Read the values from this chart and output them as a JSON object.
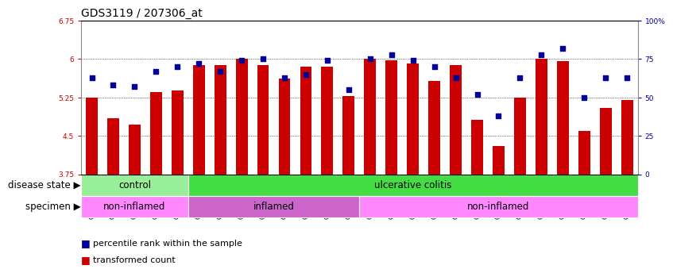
{
  "title": "GDS3119 / 207306_at",
  "samples": [
    "GSM240023",
    "GSM240024",
    "GSM240025",
    "GSM240026",
    "GSM240027",
    "GSM239617",
    "GSM239618",
    "GSM239714",
    "GSM239716",
    "GSM239717",
    "GSM239718",
    "GSM239719",
    "GSM239720",
    "GSM239723",
    "GSM239725",
    "GSM239726",
    "GSM239727",
    "GSM239729",
    "GSM239730",
    "GSM239731",
    "GSM239732",
    "GSM240022",
    "GSM240028",
    "GSM240029",
    "GSM240030",
    "GSM240031"
  ],
  "bar_values": [
    5.25,
    4.85,
    4.72,
    5.36,
    5.38,
    5.88,
    5.88,
    6.0,
    5.88,
    5.62,
    5.85,
    5.85,
    5.28,
    6.0,
    5.98,
    5.92,
    5.57,
    5.88,
    4.82,
    4.3,
    5.25,
    6.0,
    5.96,
    4.6,
    5.05,
    5.2
  ],
  "dot_values": [
    63,
    58,
    57,
    67,
    70,
    72,
    67,
    74,
    75,
    63,
    65,
    74,
    55,
    75,
    78,
    74,
    70,
    63,
    52,
    38,
    63,
    78,
    82,
    50,
    63,
    63
  ],
  "ylim_left": [
    3.75,
    6.75
  ],
  "ylim_right": [
    0,
    100
  ],
  "yticks_left": [
    3.75,
    4.5,
    5.25,
    6.0,
    6.75
  ],
  "yticks_right": [
    0,
    25,
    50,
    75,
    100
  ],
  "ytick_labels_left": [
    "3.75",
    "4.5",
    "5.25",
    "6",
    "6.75"
  ],
  "ytick_labels_right": [
    "0",
    "25",
    "50",
    "75",
    "100%"
  ],
  "bar_color": "#CC0000",
  "dot_color": "#000099",
  "grid_color": "#000000",
  "bg_color": "#FFFFFF",
  "plot_bg_color": "#FFFFFF",
  "plot_frame_color": "#AAAAAA",
  "disease_state_groups": [
    {
      "label": "control",
      "start": 0,
      "end": 5,
      "color": "#99EE99"
    },
    {
      "label": "ulcerative colitis",
      "start": 5,
      "end": 26,
      "color": "#44DD44"
    }
  ],
  "specimen_groups": [
    {
      "label": "non-inflamed",
      "start": 0,
      "end": 5,
      "color": "#FF88FF"
    },
    {
      "label": "inflamed",
      "start": 5,
      "end": 13,
      "color": "#CC66CC"
    },
    {
      "label": "non-inflamed",
      "start": 13,
      "end": 26,
      "color": "#FF88FF"
    }
  ],
  "legend_items": [
    {
      "label": "transformed count",
      "color": "#CC0000"
    },
    {
      "label": "percentile rank within the sample",
      "color": "#000099"
    }
  ],
  "label_disease_state": "disease state",
  "label_specimen": "specimen",
  "title_fontsize": 10,
  "tick_fontsize": 6.5,
  "label_fontsize": 8.5,
  "annot_fontsize": 8.5,
  "legend_fontsize": 8
}
